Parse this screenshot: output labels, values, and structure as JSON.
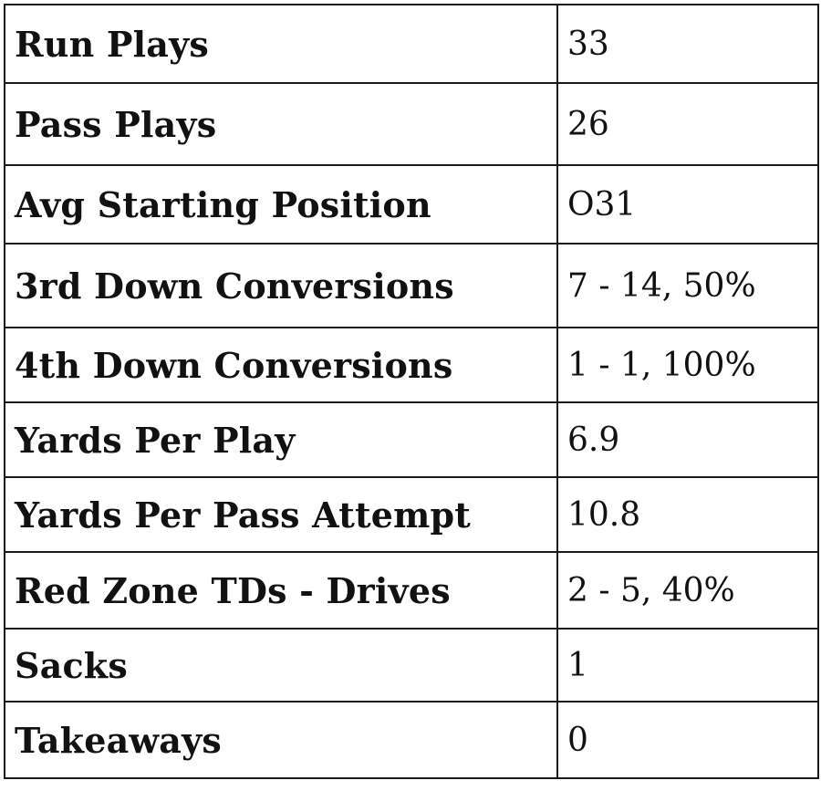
{
  "rows": [
    {
      "label": "Run Plays",
      "value": "33"
    },
    {
      "label": "Pass Plays",
      "value": "26"
    },
    {
      "label": "Avg Starting Position",
      "value": "O31"
    },
    {
      "label": "3rd Down Conversions",
      "value": "7 - 14, 50%"
    },
    {
      "label": "4th Down Conversions",
      "value": "1 - 1, 100%"
    },
    {
      "label": "Yards Per Play",
      "value": "6.9"
    },
    {
      "label": "Yards Per Pass Attempt",
      "value": "10.8"
    },
    {
      "label": "Red Zone TDs - Drives",
      "value": "2 - 5, 40%"
    },
    {
      "label": "Sacks",
      "value": "1"
    },
    {
      "label": "Takeaways",
      "value": "0"
    }
  ]
}
